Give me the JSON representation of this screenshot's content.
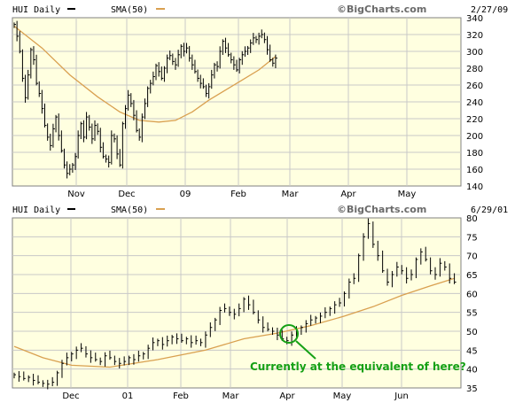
{
  "chart_data": [
    {
      "type": "line",
      "style": "ohlc-bars",
      "symbol_label": "HUI Daily",
      "sma_label": "SMA(50)",
      "source": "©BigCharts.com",
      "date": "2/27/09",
      "x_tick_labels": [
        "Nov",
        "Dec",
        "09",
        "Feb",
        "Mar",
        "Apr",
        "May"
      ],
      "y_ticks": [
        140,
        160,
        180,
        200,
        220,
        240,
        260,
        280,
        300,
        320,
        340
      ],
      "ylim": [
        140,
        340
      ],
      "grid": true,
      "colors": {
        "price": "#000000",
        "sma": "#d9a050",
        "plot_bg": "#ffffe0",
        "grid": "#c8c8c8"
      },
      "price_series": [
        {
          "t": 0,
          "v": 332
        },
        {
          "t": 1,
          "v": 318
        },
        {
          "t": 2,
          "v": 300
        },
        {
          "t": 3,
          "v": 268
        },
        {
          "t": 4,
          "v": 245
        },
        {
          "t": 5,
          "v": 272
        },
        {
          "t": 6,
          "v": 302
        },
        {
          "t": 7,
          "v": 290
        },
        {
          "t": 8,
          "v": 262
        },
        {
          "t": 9,
          "v": 250
        },
        {
          "t": 10,
          "v": 232
        },
        {
          "t": 11,
          "v": 212
        },
        {
          "t": 12,
          "v": 198
        },
        {
          "t": 13,
          "v": 188
        },
        {
          "t": 14,
          "v": 208
        },
        {
          "t": 15,
          "v": 222
        },
        {
          "t": 16,
          "v": 200
        },
        {
          "t": 17,
          "v": 182
        },
        {
          "t": 18,
          "v": 165
        },
        {
          "t": 19,
          "v": 155
        },
        {
          "t": 20,
          "v": 160
        },
        {
          "t": 21,
          "v": 165
        },
        {
          "t": 22,
          "v": 175
        },
        {
          "t": 23,
          "v": 200
        },
        {
          "t": 24,
          "v": 214
        },
        {
          "t": 25,
          "v": 198
        },
        {
          "t": 26,
          "v": 222
        },
        {
          "t": 27,
          "v": 210
        },
        {
          "t": 28,
          "v": 196
        },
        {
          "t": 29,
          "v": 212
        },
        {
          "t": 30,
          "v": 205
        },
        {
          "t": 31,
          "v": 186
        },
        {
          "t": 32,
          "v": 175
        },
        {
          "t": 33,
          "v": 172
        },
        {
          "t": 34,
          "v": 168
        },
        {
          "t": 35,
          "v": 200
        },
        {
          "t": 36,
          "v": 196
        },
        {
          "t": 37,
          "v": 178
        },
        {
          "t": 38,
          "v": 165
        },
        {
          "t": 39,
          "v": 214
        },
        {
          "t": 40,
          "v": 232
        },
        {
          "t": 41,
          "v": 248
        },
        {
          "t": 42,
          "v": 238
        },
        {
          "t": 43,
          "v": 224
        },
        {
          "t": 44,
          "v": 206
        },
        {
          "t": 45,
          "v": 198
        },
        {
          "t": 46,
          "v": 222
        },
        {
          "t": 47,
          "v": 238
        },
        {
          "t": 48,
          "v": 256
        },
        {
          "t": 49,
          "v": 262
        },
        {
          "t": 50,
          "v": 270
        },
        {
          "t": 51,
          "v": 283
        },
        {
          "t": 52,
          "v": 276
        },
        {
          "t": 53,
          "v": 268
        },
        {
          "t": 54,
          "v": 280
        },
        {
          "t": 55,
          "v": 292
        },
        {
          "t": 56,
          "v": 295
        },
        {
          "t": 57,
          "v": 288
        },
        {
          "t": 58,
          "v": 284
        },
        {
          "t": 59,
          "v": 296
        },
        {
          "t": 60,
          "v": 306
        },
        {
          "t": 61,
          "v": 300
        },
        {
          "t": 62,
          "v": 304
        },
        {
          "t": 63,
          "v": 292
        },
        {
          "t": 64,
          "v": 284
        },
        {
          "t": 65,
          "v": 276
        },
        {
          "t": 66,
          "v": 268
        },
        {
          "t": 67,
          "v": 262
        },
        {
          "t": 68,
          "v": 258
        },
        {
          "t": 69,
          "v": 250
        },
        {
          "t": 70,
          "v": 258
        },
        {
          "t": 71,
          "v": 272
        },
        {
          "t": 72,
          "v": 284
        },
        {
          "t": 73,
          "v": 282
        },
        {
          "t": 74,
          "v": 300
        },
        {
          "t": 75,
          "v": 312
        },
        {
          "t": 76,
          "v": 304
        },
        {
          "t": 77,
          "v": 296
        },
        {
          "t": 78,
          "v": 290
        },
        {
          "t": 79,
          "v": 284
        },
        {
          "t": 80,
          "v": 278
        },
        {
          "t": 81,
          "v": 290
        },
        {
          "t": 82,
          "v": 296
        },
        {
          "t": 83,
          "v": 300
        },
        {
          "t": 84,
          "v": 304
        },
        {
          "t": 85,
          "v": 310
        },
        {
          "t": 86,
          "v": 316
        },
        {
          "t": 87,
          "v": 314
        },
        {
          "t": 88,
          "v": 318
        },
        {
          "t": 89,
          "v": 320
        },
        {
          "t": 90,
          "v": 314
        },
        {
          "t": 91,
          "v": 302
        },
        {
          "t": 92,
          "v": 290
        },
        {
          "t": 93,
          "v": 286
        },
        {
          "t": 94,
          "v": 292
        }
      ],
      "sma_series": [
        {
          "t": 0,
          "v": 330
        },
        {
          "t": 10,
          "v": 304
        },
        {
          "t": 20,
          "v": 272
        },
        {
          "t": 30,
          "v": 246
        },
        {
          "t": 38,
          "v": 228
        },
        {
          "t": 45,
          "v": 218
        },
        {
          "t": 52,
          "v": 216
        },
        {
          "t": 58,
          "v": 218
        },
        {
          "t": 64,
          "v": 228
        },
        {
          "t": 70,
          "v": 242
        },
        {
          "t": 76,
          "v": 254
        },
        {
          "t": 82,
          "v": 266
        },
        {
          "t": 88,
          "v": 278
        },
        {
          "t": 94,
          "v": 294
        }
      ],
      "t_range": [
        0,
        160
      ]
    },
    {
      "type": "line",
      "style": "ohlc-bars",
      "symbol_label": "HUI Daily",
      "sma_label": "SMA(50)",
      "source": "©BigCharts.com",
      "date": "6/29/01",
      "x_tick_labels": [
        "Dec",
        "01",
        "Feb",
        "Mar",
        "Apr",
        "May",
        "Jun"
      ],
      "y_ticks": [
        35,
        40,
        45,
        50,
        55,
        60,
        65,
        70,
        75,
        80
      ],
      "ylim": [
        35,
        80
      ],
      "grid": true,
      "annotation": "Currently at the equivalent of here?",
      "annotation_color": "#15a015",
      "price_series": [
        {
          "t": 0,
          "v": 38.5
        },
        {
          "t": 2,
          "v": 38
        },
        {
          "t": 4,
          "v": 37.5
        },
        {
          "t": 6,
          "v": 37.8
        },
        {
          "t": 8,
          "v": 37
        },
        {
          "t": 10,
          "v": 36.5
        },
        {
          "t": 12,
          "v": 36.2
        },
        {
          "t": 14,
          "v": 36
        },
        {
          "t": 16,
          "v": 36.5
        },
        {
          "t": 18,
          "v": 39
        },
        {
          "t": 20,
          "v": 41.5
        },
        {
          "t": 22,
          "v": 43
        },
        {
          "t": 24,
          "v": 44
        },
        {
          "t": 26,
          "v": 45
        },
        {
          "t": 28,
          "v": 45.5
        },
        {
          "t": 30,
          "v": 44
        },
        {
          "t": 32,
          "v": 43
        },
        {
          "t": 34,
          "v": 42.5
        },
        {
          "t": 36,
          "v": 42
        },
        {
          "t": 38,
          "v": 43.5
        },
        {
          "t": 40,
          "v": 43
        },
        {
          "t": 42,
          "v": 42
        },
        {
          "t": 44,
          "v": 41.5
        },
        {
          "t": 46,
          "v": 42
        },
        {
          "t": 48,
          "v": 43
        },
        {
          "t": 50,
          "v": 42.5
        },
        {
          "t": 52,
          "v": 43.5
        },
        {
          "t": 54,
          "v": 44
        },
        {
          "t": 56,
          "v": 45.5
        },
        {
          "t": 58,
          "v": 47
        },
        {
          "t": 60,
          "v": 47.5
        },
        {
          "t": 62,
          "v": 46.5
        },
        {
          "t": 64,
          "v": 47.5
        },
        {
          "t": 66,
          "v": 48.5
        },
        {
          "t": 68,
          "v": 48
        },
        {
          "t": 70,
          "v": 47.5
        },
        {
          "t": 72,
          "v": 48
        },
        {
          "t": 74,
          "v": 47
        },
        {
          "t": 76,
          "v": 47.5
        },
        {
          "t": 78,
          "v": 47
        },
        {
          "t": 80,
          "v": 49
        },
        {
          "t": 82,
          "v": 51
        },
        {
          "t": 84,
          "v": 53
        },
        {
          "t": 86,
          "v": 55.5
        },
        {
          "t": 88,
          "v": 56
        },
        {
          "t": 90,
          "v": 55
        },
        {
          "t": 92,
          "v": 54.5
        },
        {
          "t": 94,
          "v": 56
        },
        {
          "t": 96,
          "v": 58.5
        },
        {
          "t": 98,
          "v": 57
        },
        {
          "t": 100,
          "v": 55
        },
        {
          "t": 102,
          "v": 53
        },
        {
          "t": 104,
          "v": 51
        },
        {
          "t": 106,
          "v": 50.5
        },
        {
          "t": 108,
          "v": 50
        },
        {
          "t": 110,
          "v": 49
        },
        {
          "t": 112,
          "v": 48
        },
        {
          "t": 114,
          "v": 47.5
        },
        {
          "t": 116,
          "v": 49
        },
        {
          "t": 118,
          "v": 50
        },
        {
          "t": 120,
          "v": 51
        },
        {
          "t": 122,
          "v": 52
        },
        {
          "t": 124,
          "v": 53
        },
        {
          "t": 126,
          "v": 53.5
        },
        {
          "t": 128,
          "v": 54
        },
        {
          "t": 130,
          "v": 55
        },
        {
          "t": 132,
          "v": 56
        },
        {
          "t": 134,
          "v": 57
        },
        {
          "t": 136,
          "v": 57.5
        },
        {
          "t": 138,
          "v": 60
        },
        {
          "t": 140,
          "v": 63
        },
        {
          "t": 142,
          "v": 64
        },
        {
          "t": 144,
          "v": 70
        },
        {
          "t": 146,
          "v": 75
        },
        {
          "t": 148,
          "v": 78.5
        },
        {
          "t": 150,
          "v": 73
        },
        {
          "t": 152,
          "v": 70
        },
        {
          "t": 154,
          "v": 66
        },
        {
          "t": 156,
          "v": 63
        },
        {
          "t": 158,
          "v": 65
        },
        {
          "t": 160,
          "v": 67
        },
        {
          "t": 162,
          "v": 66
        },
        {
          "t": 164,
          "v": 64
        },
        {
          "t": 166,
          "v": 65
        },
        {
          "t": 168,
          "v": 69
        },
        {
          "t": 170,
          "v": 71
        },
        {
          "t": 172,
          "v": 69
        },
        {
          "t": 174,
          "v": 66
        },
        {
          "t": 176,
          "v": 65
        },
        {
          "t": 178,
          "v": 68
        },
        {
          "t": 180,
          "v": 67
        },
        {
          "t": 182,
          "v": 64
        },
        {
          "t": 184,
          "v": 63
        }
      ],
      "sma_series": [
        {
          "t": 0,
          "v": 46
        },
        {
          "t": 12,
          "v": 43
        },
        {
          "t": 24,
          "v": 41
        },
        {
          "t": 40,
          "v": 40.5
        },
        {
          "t": 60,
          "v": 42.5
        },
        {
          "t": 80,
          "v": 45
        },
        {
          "t": 96,
          "v": 48
        },
        {
          "t": 110,
          "v": 49.5
        },
        {
          "t": 124,
          "v": 51.5
        },
        {
          "t": 138,
          "v": 54
        },
        {
          "t": 150,
          "v": 56.5
        },
        {
          "t": 162,
          "v": 59.5
        },
        {
          "t": 174,
          "v": 62
        },
        {
          "t": 184,
          "v": 64
        }
      ],
      "t_range": [
        0,
        186
      ]
    }
  ]
}
